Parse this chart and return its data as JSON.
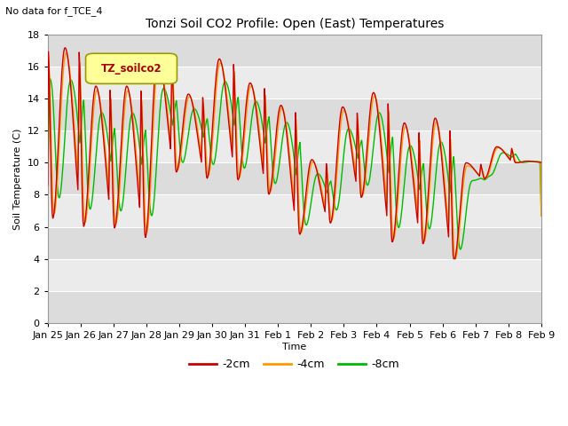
{
  "title": "Tonzi Soil CO2 Profile: Open (East) Temperatures",
  "no_data_label": "No data for f_TCE_4",
  "ylabel": "Soil Temperature (C)",
  "xlabel": "Time",
  "ylim": [
    0,
    18
  ],
  "background_color": "#ffffff",
  "plot_bg_even": "#dcdcdc",
  "plot_bg_odd": "#ebebeb",
  "grid_color": "#ffffff",
  "line_colors": {
    "2cm": "#cc0000",
    "4cm": "#ff9900",
    "8cm": "#00bb00"
  },
  "legend_label": "TZ_soilco2",
  "legend_text_color": "#aa0000",
  "legend_border_color": "#999900",
  "legend_bg": "#ffff99",
  "tick_labels": [
    "Jan 25",
    "Jan 26",
    "Jan 27",
    "Jan 28",
    "Jan 29",
    "Jan 30",
    "Jan 31",
    "Feb 1",
    "Feb 2",
    "Feb 3",
    "Feb 4",
    "Feb 5",
    "Feb 6",
    "Feb 7",
    "Feb 8",
    "Feb 9"
  ],
  "series_labels": [
    "-2cm",
    "-4cm",
    "-8cm"
  ],
  "figsize": [
    6.4,
    4.8
  ],
  "dpi": 100
}
